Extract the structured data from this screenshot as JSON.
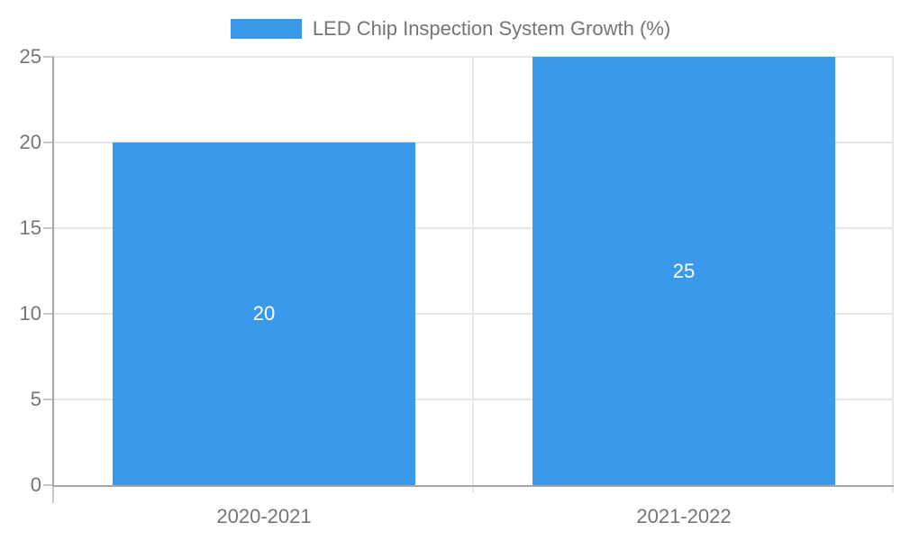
{
  "chart_data": {
    "type": "bar",
    "title": "",
    "legend": {
      "label": "LED Chip Inspection System Growth (%)",
      "position": "top"
    },
    "categories": [
      "2020-2021",
      "2021-2022"
    ],
    "series": [
      {
        "name": "LED Chip Inspection System Growth (%)",
        "values": [
          20,
          25
        ]
      }
    ],
    "value_labels": [
      "20",
      "25"
    ],
    "ylabel": "",
    "xlabel": "",
    "ylim": [
      0,
      25
    ],
    "yticks": [
      0,
      5,
      10,
      15,
      20,
      25
    ],
    "grid": true,
    "colors": {
      "bar": "#3B99EC",
      "gridline": "#e6e6e6",
      "axis_line": "#a6a6a6",
      "tick": "#c9c9c9",
      "axis_text": "#757575",
      "value_text": "#ffffff",
      "background": "#ffffff"
    }
  }
}
